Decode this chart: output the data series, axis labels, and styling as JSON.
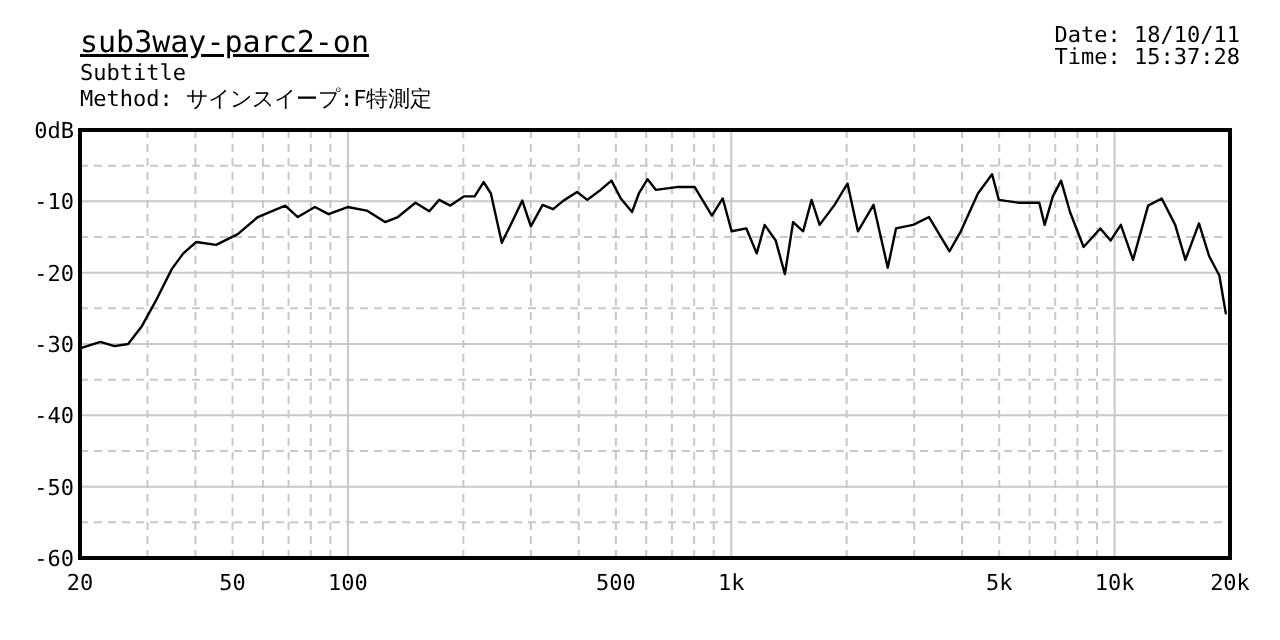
{
  "chart_data": {
    "type": "line",
    "title": "sub3way-parc2-on",
    "subtitle": "Subtitle",
    "annotations": [
      "Method: サインスイープ:F特測定",
      "Date: 18/10/11",
      "Time: 15:37:28"
    ],
    "log": "x",
    "grid": true,
    "xlim": [
      20,
      20000
    ],
    "ylim": [
      -60,
      0
    ],
    "xticks": [
      20,
      {
        "value": 30,
        "label": null
      },
      {
        "value": 40,
        "label": null
      },
      50,
      {
        "value": 60,
        "label": null
      },
      {
        "value": 70,
        "label": null
      },
      {
        "value": 80,
        "label": null
      },
      {
        "value": 90,
        "label": null
      },
      100,
      {
        "value": 200,
        "label": null
      },
      {
        "value": 300,
        "label": null
      },
      {
        "value": 400,
        "label": null
      },
      500,
      {
        "value": 600,
        "label": null
      },
      {
        "value": 700,
        "label": null
      },
      {
        "value": 800,
        "label": null
      },
      {
        "value": 900,
        "label": null
      },
      {
        "value": 1000,
        "label": "1k"
      },
      {
        "value": 2000,
        "label": null
      },
      {
        "value": 3000,
        "label": null
      },
      {
        "value": 4000,
        "label": null
      },
      {
        "value": 5000,
        "label": "5k"
      },
      {
        "value": 6000,
        "label": null
      },
      {
        "value": 7000,
        "label": null
      },
      {
        "value": 8000,
        "label": null
      },
      {
        "value": 9000,
        "label": null
      },
      {
        "value": 10000,
        "label": "10k"
      },
      {
        "value": 20000,
        "label": "20k"
      }
    ],
    "yticks": [
      -60,
      {
        "value": -55,
        "label": null
      },
      -50,
      {
        "value": -45,
        "label": null
      },
      -40,
      {
        "value": -35,
        "label": null
      },
      -30,
      {
        "value": -25,
        "label": null
      },
      -20,
      {
        "value": -15,
        "label": null
      },
      -10,
      {
        "value": -5,
        "label": null
      },
      {
        "value": 0,
        "label": "0dB"
      }
    ],
    "series": [
      {
        "color": "#000000",
        "line_style": "solid",
        "marker": "none",
        "x": [
          20,
          22.6,
          24.6,
          26.7,
          29,
          31.5,
          34.7,
          37.2,
          40.2,
          45.3,
          51.6,
          58.2,
          68.6,
          74,
          82,
          89,
          99.8,
          112,
          125,
          135,
          150,
          163,
          173,
          185,
          201,
          214,
          226,
          236,
          252,
          268,
          285,
          300,
          322,
          343,
          365,
          396,
          421,
          456,
          487,
          515,
          551,
          574,
          605,
          636,
          720,
          803,
          890,
          950,
          1002,
          1095,
          1165,
          1222,
          1306,
          1380,
          1450,
          1540,
          1620,
          1700,
          1860,
          2010,
          2140,
          2350,
          2560,
          2690,
          2980,
          3280,
          3710,
          3970,
          4400,
          4790,
          4990,
          5630,
          6360,
          6570,
          6900,
          7250,
          7650,
          8300,
          9180,
          9760,
          10380,
          11170,
          12230,
          13270,
          14390,
          15300,
          16600,
          17650,
          18760,
          19500
        ],
        "values": [
          -30.6,
          -29.7,
          -30.3,
          -30,
          -27.5,
          -24,
          -19.5,
          -17.3,
          -15.7,
          -16.1,
          -14.6,
          -12.2,
          -10.6,
          -12.2,
          -10.8,
          -11.8,
          -10.8,
          -11.3,
          -12.9,
          -12.2,
          -10.2,
          -11.4,
          -9.8,
          -10.6,
          -9.3,
          -9.3,
          -7.3,
          -8.9,
          -15.8,
          -12.9,
          -9.9,
          -13.5,
          -10.5,
          -11.1,
          -9.9,
          -8.7,
          -9.8,
          -8.4,
          -7.1,
          -9.6,
          -11.5,
          -8.9,
          -6.9,
          -8.4,
          -8,
          -8,
          -12,
          -9.6,
          -14.2,
          -13.8,
          -17.3,
          -13.3,
          -15.5,
          -20.2,
          -12.9,
          -14.2,
          -9.8,
          -13.3,
          -10.5,
          -7.5,
          -14.2,
          -10.5,
          -19.3,
          -13.8,
          -13.3,
          -12.2,
          -17,
          -14.2,
          -8.9,
          -6.2,
          -9.8,
          -10.2,
          -10.2,
          -13.3,
          -9.3,
          -7.1,
          -11.5,
          -16.4,
          -13.8,
          -15.5,
          -13.3,
          -18.2,
          -10.6,
          -9.6,
          -13.3,
          -18.2,
          -13.1,
          -17.7,
          -20.4,
          -25.7
        ]
      }
    ]
  }
}
